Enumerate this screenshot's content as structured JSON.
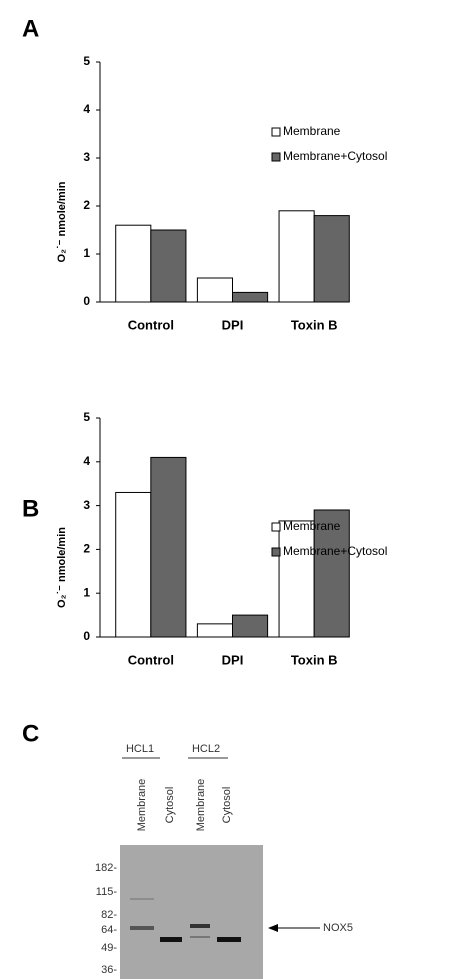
{
  "chart_data": [
    {
      "type": "bar",
      "panel_label": "A",
      "y_label": "O₂˙⁻ nmole/min",
      "categories": [
        "Control",
        "DPI",
        "Toxin B"
      ],
      "series": [
        {
          "name": "Membrane",
          "color": "#ffffff",
          "values": [
            1.6,
            0.5,
            1.9
          ]
        },
        {
          "name": "Membrane+Cytosol",
          "color": "#666666",
          "values": [
            1.5,
            0.2,
            1.8
          ]
        }
      ],
      "ylim": [
        0,
        5
      ],
      "yticks": [
        0,
        1,
        2,
        3,
        4,
        5
      ],
      "grid": false,
      "legend": "upper right"
    },
    {
      "type": "bar",
      "panel_label": "B",
      "y_label": "O₂˙⁻ nmole/min",
      "categories": [
        "Control",
        "DPI",
        "Toxin B"
      ],
      "series": [
        {
          "name": "Membrane",
          "color": "#ffffff",
          "values": [
            3.3,
            0.3,
            2.65
          ]
        },
        {
          "name": "Membrane+Cytosol",
          "color": "#666666",
          "values": [
            4.1,
            0.5,
            2.9
          ]
        }
      ],
      "ylim": [
        0,
        5
      ],
      "yticks": [
        0,
        1,
        2,
        3,
        4,
        5
      ],
      "grid": false,
      "legend": "upper right"
    }
  ],
  "blot": {
    "panel_label": "C",
    "groups": [
      "HCL1",
      "HCL2"
    ],
    "lanes": [
      "Membrane",
      "Cytosol",
      "Membrane",
      "Cytosol"
    ],
    "markers": [
      "182-",
      "115-",
      "82-",
      "64-",
      "49-",
      "36-"
    ],
    "band_label": "NOX5"
  }
}
